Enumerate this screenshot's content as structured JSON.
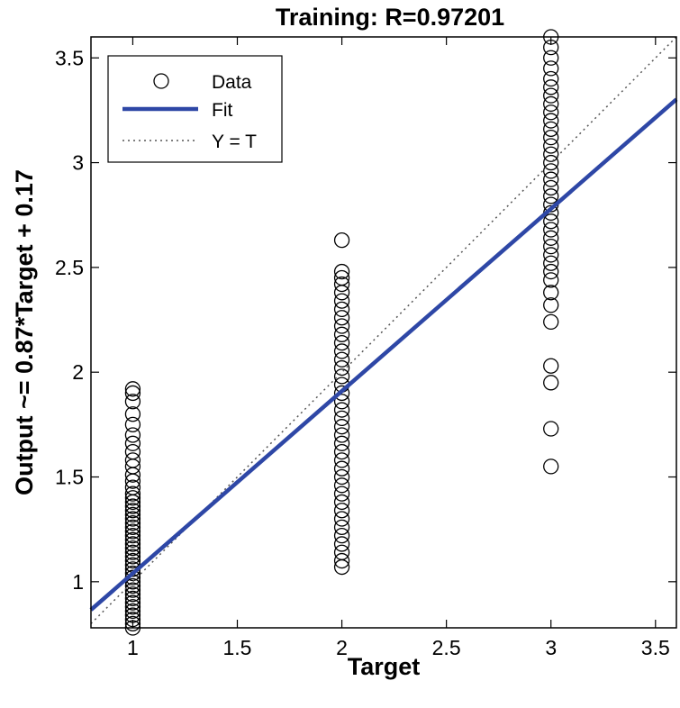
{
  "chart_data": {
    "type": "scatter",
    "title": "Training: R=0.97201",
    "xlabel": "Target",
    "ylabel": "Output ~= 0.87*Target + 0.17",
    "xlim": [
      0.8,
      3.6
    ],
    "ylim": [
      0.78,
      3.6
    ],
    "xticks": [
      1,
      1.5,
      2,
      2.5,
      3,
      3.5
    ],
    "yticks": [
      1,
      1.5,
      2,
      2.5,
      3,
      3.5
    ],
    "xtick_labels": [
      "1",
      "1.5",
      "2",
      "2.5",
      "3",
      "3.5"
    ],
    "ytick_labels": [
      "1",
      "1.5",
      "2",
      "2.5",
      "3",
      "3.5"
    ],
    "grid": false,
    "legend_position": "top-left",
    "legend": [
      {
        "label": "Data",
        "marker": "circle"
      },
      {
        "label": "Fit",
        "line": "solid"
      },
      {
        "label": "Y = T",
        "line": "dotted"
      }
    ],
    "fit": {
      "slope": 0.87,
      "intercept": 0.17,
      "color": "#2e47a6"
    },
    "identity_line": {
      "color": "#555555"
    },
    "marker_color": "#000000",
    "series": [
      {
        "x": 1,
        "y": [
          0.78,
          0.8,
          0.82,
          0.84,
          0.86,
          0.88,
          0.9,
          0.92,
          0.94,
          0.96,
          0.98,
          1.0,
          1.02,
          1.04,
          1.06,
          1.08,
          1.1,
          1.12,
          1.14,
          1.16,
          1.18,
          1.2,
          1.22,
          1.24,
          1.26,
          1.28,
          1.3,
          1.32,
          1.34,
          1.36,
          1.38,
          1.4,
          1.42,
          1.45,
          1.48,
          1.51,
          1.55,
          1.58,
          1.62,
          1.66,
          1.7,
          1.75,
          1.8,
          1.86,
          1.9,
          1.92
        ]
      },
      {
        "x": 2,
        "y": [
          1.07,
          1.1,
          1.14,
          1.18,
          1.22,
          1.26,
          1.3,
          1.34,
          1.38,
          1.42,
          1.46,
          1.5,
          1.54,
          1.58,
          1.62,
          1.66,
          1.7,
          1.74,
          1.78,
          1.82,
          1.86,
          1.9,
          1.94,
          1.98,
          2.02,
          2.06,
          2.1,
          2.14,
          2.18,
          2.22,
          2.26,
          2.3,
          2.34,
          2.38,
          2.42,
          2.45,
          2.48,
          2.63
        ]
      },
      {
        "x": 3,
        "y": [
          1.55,
          1.73,
          1.95,
          2.03,
          2.24,
          2.32,
          2.38,
          2.44,
          2.48,
          2.52,
          2.56,
          2.6,
          2.64,
          2.68,
          2.72,
          2.76,
          2.8,
          2.84,
          2.88,
          2.92,
          2.96,
          3.0,
          3.04,
          3.08,
          3.12,
          3.16,
          3.2,
          3.24,
          3.28,
          3.32,
          3.36,
          3.4,
          3.45,
          3.5,
          3.55,
          3.6
        ]
      }
    ]
  }
}
